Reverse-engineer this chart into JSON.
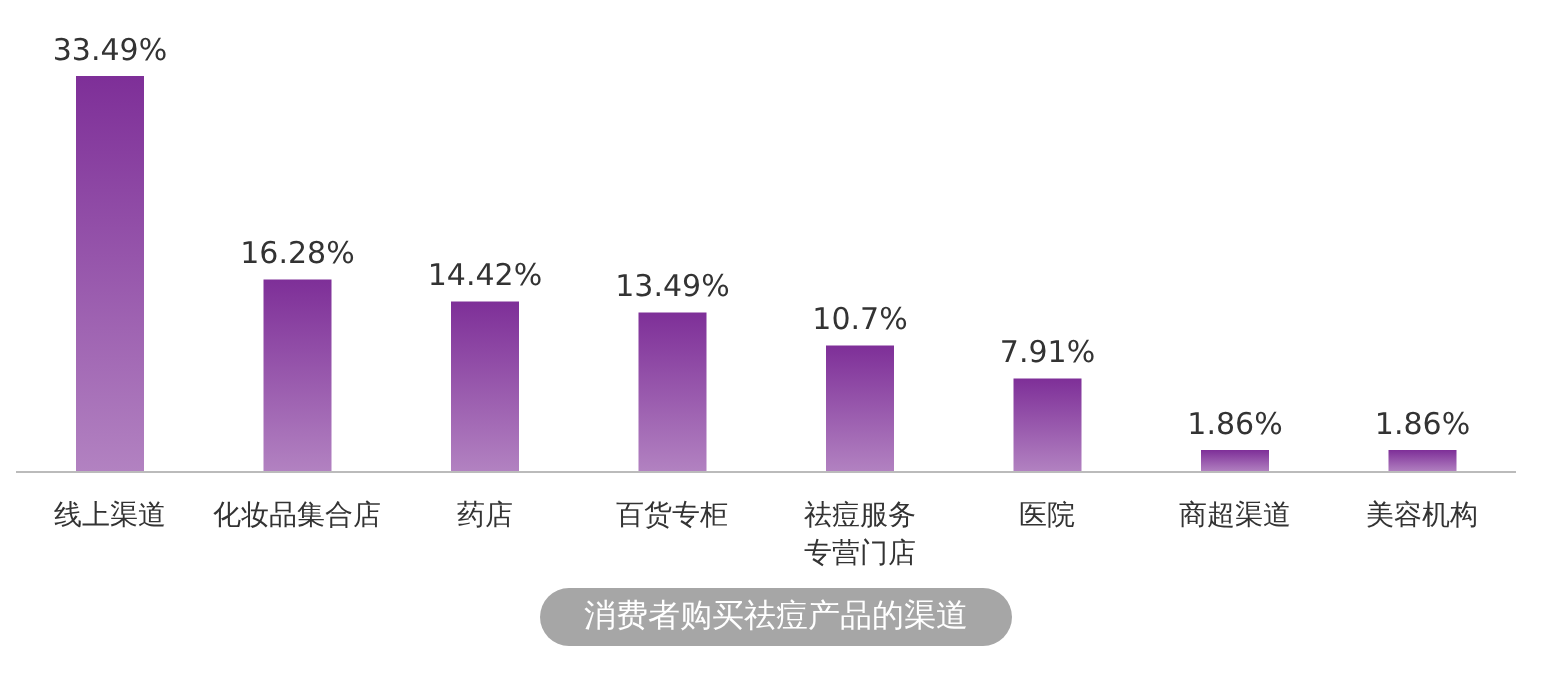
{
  "chart_data": {
    "type": "bar",
    "title": "消费者购买祛痘产品的渠道",
    "categories": [
      "线上渠道",
      "化妆品集合店",
      "药店",
      "百货专柜",
      "祛痘服务专营门店",
      "医院",
      "商超渠道",
      "美容机构"
    ],
    "values": [
      33.49,
      16.28,
      14.42,
      13.49,
      10.7,
      7.91,
      1.86,
      1.86
    ],
    "value_labels": [
      "33.49%",
      "16.28%",
      "14.42%",
      "13.49%",
      "10.7%",
      "7.91%",
      "1.86%",
      "1.86%"
    ],
    "color": "#7e2f98",
    "tick_labels": "x"
  }
}
